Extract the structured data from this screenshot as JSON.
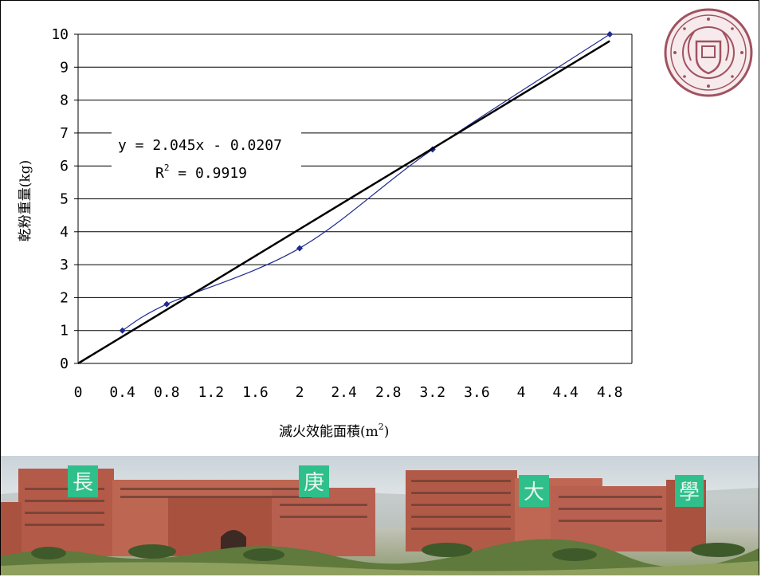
{
  "chart_data": {
    "type": "scatter",
    "xlabel_main": "滅火效能面積(m",
    "xlabel_sup": "2",
    "xlabel_tail": ")",
    "ylabel": "乾粉重量(kg)",
    "xlim": [
      0,
      5
    ],
    "ylim": [
      0,
      10
    ],
    "x_ticks": [
      0,
      0.4,
      0.8,
      1.2,
      1.6,
      2,
      2.4,
      2.8,
      3.2,
      3.6,
      4,
      4.4,
      4.8
    ],
    "x_tick_labels": [
      "0",
      "0.4",
      "0.8",
      "1.2",
      "1.6",
      "2",
      "2.4",
      "2.8",
      "3.2",
      "3.6",
      "4",
      "4.4",
      "4.8"
    ],
    "y_ticks": [
      0,
      1,
      2,
      3,
      4,
      5,
      6,
      7,
      8,
      9,
      10
    ],
    "y_tick_labels": [
      "0",
      "1",
      "2",
      "3",
      "4",
      "5",
      "6",
      "7",
      "8",
      "9",
      "10"
    ],
    "grid": "horizontal",
    "series": [
      {
        "x": [
          0.4,
          0.8,
          2,
          3.2,
          4.8
        ],
        "y": [
          1,
          1.8,
          3.5,
          6.5,
          10
        ],
        "color": "#1f2b8f",
        "style": "smooth-line-with-markers"
      }
    ],
    "trendline": {
      "type": "linear",
      "slope": 2.045,
      "intercept": -0.0207,
      "x_range": [
        0,
        4.8
      ],
      "color": "#000000",
      "equation_text": "y = 2.045x - 0.0207",
      "r2_prefix": "R",
      "r2_sup": "2",
      "r2_value_text": " = 0.9919"
    }
  },
  "logo": {
    "name": "university-seal",
    "color": "#a0525f"
  },
  "photo": {
    "sign_chars": [
      "長",
      "庚",
      "大",
      "學"
    ],
    "sign_color": "#2fbf8a",
    "building_color": "#b45a48"
  }
}
